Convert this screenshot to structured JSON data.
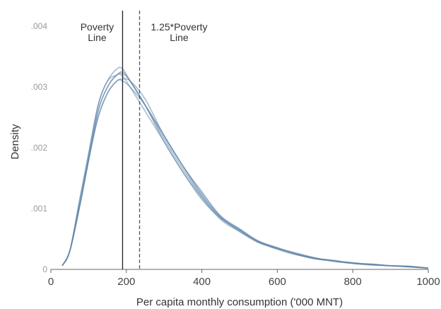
{
  "chart_data": {
    "type": "line",
    "title": "",
    "xlabel": "Per capita monthly consumption ('000 MNT)",
    "ylabel": "Density",
    "xlim": [
      0,
      1000
    ],
    "ylim": [
      0,
      0.0042
    ],
    "x_ticks": [
      0,
      200,
      400,
      600,
      800,
      1000
    ],
    "x_tick_labels": [
      "0",
      "200",
      "400",
      "600",
      "800",
      "1000"
    ],
    "y_ticks": [
      0,
      0.001,
      0.002,
      0.003,
      0.004
    ],
    "y_tick_labels": [
      "0",
      ".001",
      ".002",
      ".003",
      ".004"
    ],
    "grid": false,
    "legend": "none",
    "line_color": "#5f84a8",
    "x": [
      30,
      50,
      75,
      100,
      125,
      150,
      175,
      190,
      210,
      250,
      300,
      350,
      400,
      450,
      500,
      550,
      600,
      650,
      700,
      750,
      800,
      850,
      900,
      950,
      1000
    ],
    "series": [
      {
        "values": [
          6e-05,
          0.0003,
          0.001,
          0.0018,
          0.0026,
          0.003,
          0.0032,
          0.00322,
          0.0031,
          0.0027,
          0.00215,
          0.00165,
          0.0012,
          0.00085,
          0.00065,
          0.00045,
          0.00035,
          0.00025,
          0.00018,
          0.00014,
          0.0001,
          8e-05,
          6e-05,
          5e-05,
          2e-05
        ]
      },
      {
        "values": [
          6e-05,
          0.0003,
          0.0011,
          0.0019,
          0.0027,
          0.0031,
          0.0033,
          0.0033,
          0.0031,
          0.0027,
          0.0021,
          0.0016,
          0.00118,
          0.00082,
          0.00062,
          0.00044,
          0.00034,
          0.00026,
          0.00019,
          0.00013,
          0.0001,
          8e-05,
          6e-05,
          5e-05,
          2e-05
        ]
      },
      {
        "values": [
          6e-05,
          0.0003,
          0.001,
          0.0018,
          0.0025,
          0.0029,
          0.0031,
          0.00313,
          0.0031,
          0.0028,
          0.0022,
          0.0017,
          0.00125,
          0.00088,
          0.00067,
          0.00047,
          0.00036,
          0.00025,
          0.00017,
          0.00014,
          0.00011,
          8e-05,
          6e-05,
          4e-05,
          2e-05
        ]
      },
      {
        "values": [
          6e-05,
          0.0003,
          0.001,
          0.0018,
          0.0026,
          0.003,
          0.0032,
          0.00318,
          0.003,
          0.0026,
          0.0021,
          0.0016,
          0.00115,
          0.00084,
          0.00064,
          0.00046,
          0.00033,
          0.00024,
          0.00018,
          0.00015,
          0.0001,
          7e-05,
          6e-05,
          5e-05,
          2e-05
        ]
      },
      {
        "values": [
          6e-05,
          0.0003,
          0.0011,
          0.0019,
          0.0027,
          0.0031,
          0.0032,
          0.00325,
          0.0031,
          0.0027,
          0.0022,
          0.0017,
          0.00122,
          0.00086,
          0.00066,
          0.00045,
          0.00035,
          0.00027,
          0.00019,
          0.00014,
          0.0001,
          9e-05,
          6e-05,
          5e-05,
          2e-05
        ]
      },
      {
        "values": [
          6e-05,
          0.0003,
          0.001,
          0.0018,
          0.0025,
          0.0029,
          0.0031,
          0.0031,
          0.003,
          0.0027,
          0.0022,
          0.0017,
          0.00128,
          0.00087,
          0.00063,
          0.00046,
          0.00035,
          0.00025,
          0.00018,
          0.00014,
          0.00011,
          8e-05,
          6e-05,
          4e-05,
          2e-05
        ]
      }
    ],
    "vertical_lines": [
      {
        "x": 190,
        "style": "solid",
        "label_line1": "Poverty",
        "label_line2": "Line"
      },
      {
        "x": 235,
        "style": "dashed",
        "label_line1": "1.25*Poverty",
        "label_line2": "Line"
      }
    ]
  }
}
